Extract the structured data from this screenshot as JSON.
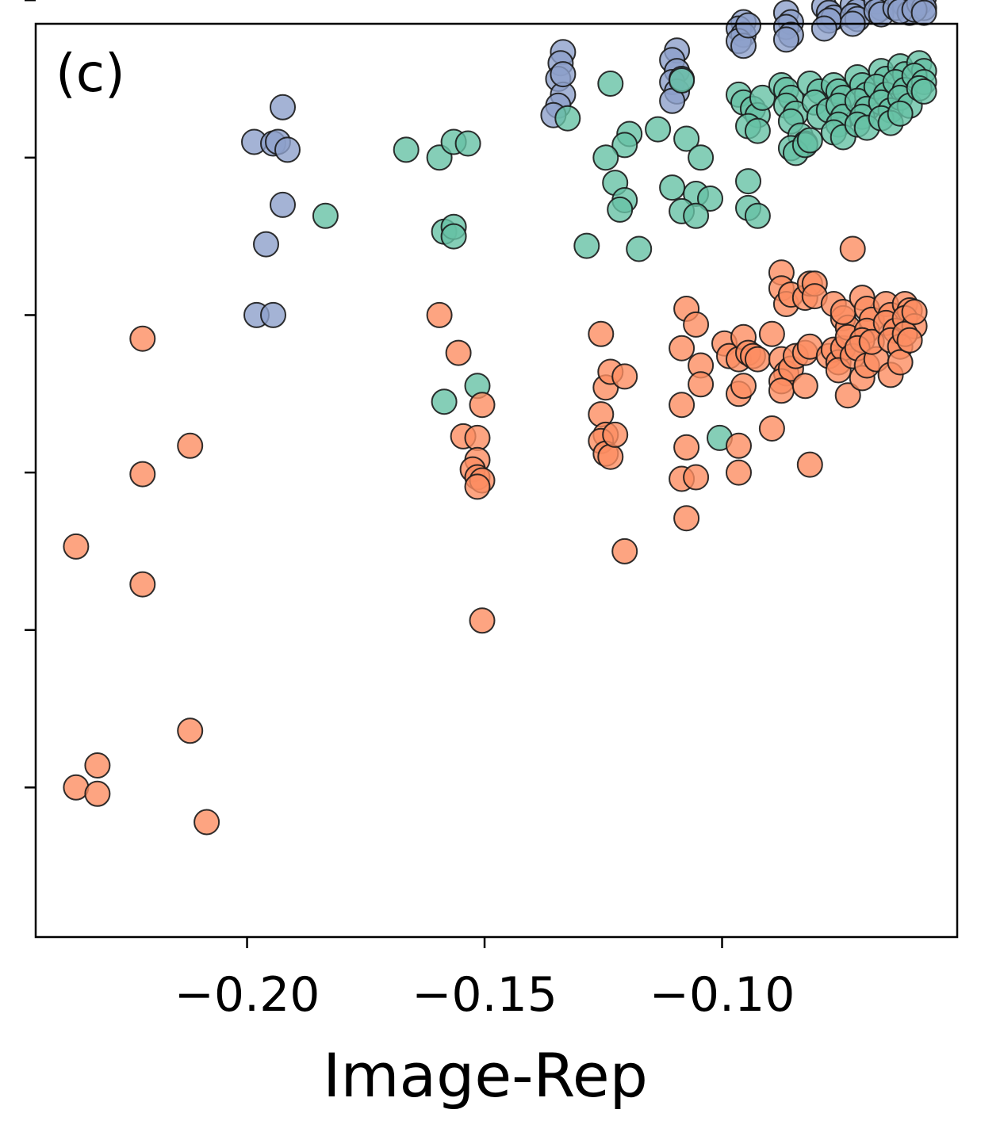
{
  "chart_data": {
    "type": "scatter",
    "panel_label": "(c)",
    "title": "",
    "xlabel": "Image-Rep",
    "ylabel": "",
    "xlim": [
      -0.2445,
      -0.0505
    ],
    "ylim": [
      -0.95,
      4.85
    ],
    "xticks": [
      -0.2,
      -0.15,
      -0.1
    ],
    "xtick_labels": [
      "−0.20",
      "−0.15",
      "−0.10"
    ],
    "yticks": [
      0,
      1,
      2,
      3,
      4,
      5
    ],
    "ytick_labels": [
      "",
      "",
      "",
      "",
      "",
      ""
    ],
    "grid": false,
    "colors": {
      "blue": "#8da0cb",
      "green": "#66c2a5",
      "orange": "#fc8d62",
      "edge": "#1a1a1a"
    },
    "series": [
      {
        "name": "blue",
        "color": "#8da0cb",
        "points": [
          [
            -0.1985,
            4.1
          ],
          [
            -0.1945,
            4.09
          ],
          [
            -0.1935,
            4.1
          ],
          [
            -0.1915,
            4.05
          ],
          [
            -0.1925,
            4.32
          ],
          [
            -0.1925,
            3.7
          ],
          [
            -0.196,
            3.45
          ],
          [
            -0.198,
            3.0
          ],
          [
            -0.1945,
            3.0
          ],
          [
            -0.1335,
            4.67
          ],
          [
            -0.134,
            4.6
          ],
          [
            -0.1345,
            4.5
          ],
          [
            -0.1335,
            4.4
          ],
          [
            -0.1345,
            4.33
          ],
          [
            -0.1355,
            4.27
          ],
          [
            -0.1335,
            4.53
          ],
          [
            -0.1095,
            4.68
          ],
          [
            -0.1105,
            4.62
          ],
          [
            -0.1095,
            4.55
          ],
          [
            -0.1105,
            4.48
          ],
          [
            -0.1095,
            4.42
          ],
          [
            -0.1105,
            4.36
          ],
          [
            -0.1085,
            4.5
          ],
          [
            -0.0955,
            4.86
          ],
          [
            -0.0965,
            4.82
          ],
          [
            -0.0955,
            4.78
          ],
          [
            -0.0965,
            4.74
          ],
          [
            -0.0955,
            4.71
          ],
          [
            -0.0945,
            4.84
          ],
          [
            -0.0865,
            4.92
          ],
          [
            -0.0855,
            4.86
          ],
          [
            -0.0865,
            4.83
          ],
          [
            -0.0855,
            4.78
          ],
          [
            -0.0865,
            4.75
          ],
          [
            -0.0785,
            4.96
          ],
          [
            -0.0775,
            4.92
          ],
          [
            -0.0765,
            4.89
          ],
          [
            -0.0775,
            4.87
          ],
          [
            -0.0785,
            4.82
          ],
          [
            -0.0725,
            4.97
          ],
          [
            -0.0715,
            4.93
          ],
          [
            -0.0725,
            4.9
          ],
          [
            -0.0715,
            4.88
          ],
          [
            -0.0725,
            4.85
          ],
          [
            -0.0675,
            4.99
          ],
          [
            -0.0665,
            4.95
          ],
          [
            -0.0675,
            4.93
          ],
          [
            -0.0665,
            4.91
          ],
          [
            -0.0625,
            5.0
          ],
          [
            -0.0615,
            4.97
          ],
          [
            -0.0635,
            4.95
          ],
          [
            -0.0605,
            4.92
          ],
          [
            -0.0625,
            4.93
          ],
          [
            -0.0575,
            5.02
          ],
          [
            -0.0585,
            4.98
          ],
          [
            -0.0575,
            4.95
          ],
          [
            -0.0595,
            4.94
          ],
          [
            -0.0575,
            4.92
          ]
        ]
      },
      {
        "name": "green",
        "color": "#66c2a5",
        "points": [
          [
            -0.1665,
            4.05
          ],
          [
            -0.1595,
            4.0
          ],
          [
            -0.1565,
            4.1
          ],
          [
            -0.1535,
            4.09
          ],
          [
            -0.1835,
            3.63
          ],
          [
            -0.1585,
            3.53
          ],
          [
            -0.1565,
            3.56
          ],
          [
            -0.1565,
            3.5
          ],
          [
            -0.1515,
            2.55
          ],
          [
            -0.1585,
            2.45
          ],
          [
            -0.1325,
            4.25
          ],
          [
            -0.1235,
            4.47
          ],
          [
            -0.1195,
            4.15
          ],
          [
            -0.1205,
            4.08
          ],
          [
            -0.1245,
            4.0
          ],
          [
            -0.1225,
            3.84
          ],
          [
            -0.1205,
            3.73
          ],
          [
            -0.1215,
            3.67
          ],
          [
            -0.1285,
            3.44
          ],
          [
            -0.1175,
            3.42
          ],
          [
            -0.1135,
            4.18
          ],
          [
            -0.1085,
            4.49
          ],
          [
            -0.1075,
            4.12
          ],
          [
            -0.1045,
            4.0
          ],
          [
            -0.1105,
            3.81
          ],
          [
            -0.1055,
            3.77
          ],
          [
            -0.1025,
            3.74
          ],
          [
            -0.1085,
            3.66
          ],
          [
            -0.1055,
            3.63
          ],
          [
            -0.1005,
            2.22
          ],
          [
            -0.0965,
            4.4
          ],
          [
            -0.0955,
            4.35
          ],
          [
            -0.0935,
            4.31
          ],
          [
            -0.0925,
            4.27
          ],
          [
            -0.0945,
            4.2
          ],
          [
            -0.0925,
            4.17
          ],
          [
            -0.0915,
            4.38
          ],
          [
            -0.0945,
            3.85
          ],
          [
            -0.0945,
            3.68
          ],
          [
            -0.0925,
            3.63
          ],
          [
            -0.0875,
            4.46
          ],
          [
            -0.0865,
            4.43
          ],
          [
            -0.0855,
            4.38
          ],
          [
            -0.0865,
            4.33
          ],
          [
            -0.0845,
            4.28
          ],
          [
            -0.0855,
            4.23
          ],
          [
            -0.0835,
            4.14
          ],
          [
            -0.0825,
            4.09
          ],
          [
            -0.0855,
            4.06
          ],
          [
            -0.0845,
            4.03
          ],
          [
            -0.0825,
            4.08
          ],
          [
            -0.0815,
            4.11
          ],
          [
            -0.0815,
            4.47
          ],
          [
            -0.0795,
            4.42
          ],
          [
            -0.0805,
            4.35
          ],
          [
            -0.0795,
            4.26
          ],
          [
            -0.0775,
            4.3
          ],
          [
            -0.0765,
            4.46
          ],
          [
            -0.0755,
            4.42
          ],
          [
            -0.0745,
            4.38
          ],
          [
            -0.0755,
            4.33
          ],
          [
            -0.0745,
            4.26
          ],
          [
            -0.0755,
            4.21
          ],
          [
            -0.0765,
            4.16
          ],
          [
            -0.0745,
            4.13
          ],
          [
            -0.0715,
            4.51
          ],
          [
            -0.0705,
            4.46
          ],
          [
            -0.0695,
            4.4
          ],
          [
            -0.0715,
            4.36
          ],
          [
            -0.0695,
            4.31
          ],
          [
            -0.0705,
            4.26
          ],
          [
            -0.0715,
            4.21
          ],
          [
            -0.0695,
            4.19
          ],
          [
            -0.0665,
            4.55
          ],
          [
            -0.0655,
            4.5
          ],
          [
            -0.0675,
            4.45
          ],
          [
            -0.0655,
            4.4
          ],
          [
            -0.0665,
            4.35
          ],
          [
            -0.0645,
            4.3
          ],
          [
            -0.0665,
            4.25
          ],
          [
            -0.0645,
            4.22
          ],
          [
            -0.0625,
            4.58
          ],
          [
            -0.0615,
            4.53
          ],
          [
            -0.0635,
            4.48
          ],
          [
            -0.0615,
            4.43
          ],
          [
            -0.0625,
            4.38
          ],
          [
            -0.0605,
            4.33
          ],
          [
            -0.0625,
            4.28
          ],
          [
            -0.0585,
            4.6
          ],
          [
            -0.0575,
            4.55
          ],
          [
            -0.0595,
            4.52
          ],
          [
            -0.0575,
            4.48
          ],
          [
            -0.0585,
            4.44
          ],
          [
            -0.0575,
            4.42
          ]
        ]
      },
      {
        "name": "orange",
        "color": "#fc8d62",
        "points": [
          [
            -0.236,
            1.53
          ],
          [
            -0.222,
            2.85
          ],
          [
            -0.222,
            1.99
          ],
          [
            -0.222,
            1.29
          ],
          [
            -0.212,
            2.17
          ],
          [
            -0.212,
            0.36
          ],
          [
            -0.236,
            0.0
          ],
          [
            -0.2315,
            0.14
          ],
          [
            -0.2315,
            -0.04
          ],
          [
            -0.2085,
            -0.22
          ],
          [
            -0.1595,
            3.0
          ],
          [
            -0.1555,
            2.76
          ],
          [
            -0.1505,
            2.43
          ],
          [
            -0.1545,
            2.23
          ],
          [
            -0.1515,
            2.22
          ],
          [
            -0.1515,
            2.08
          ],
          [
            -0.1525,
            2.02
          ],
          [
            -0.1515,
            1.97
          ],
          [
            -0.1505,
            1.95
          ],
          [
            -0.1515,
            1.91
          ],
          [
            -0.1505,
            1.06
          ],
          [
            -0.1255,
            2.88
          ],
          [
            -0.1245,
            2.54
          ],
          [
            -0.1255,
            2.37
          ],
          [
            -0.1245,
            2.24
          ],
          [
            -0.1255,
            2.2
          ],
          [
            -0.1245,
            2.12
          ],
          [
            -0.1235,
            2.1
          ],
          [
            -0.1225,
            2.24
          ],
          [
            -0.1235,
            2.64
          ],
          [
            -0.1205,
            2.61
          ],
          [
            -0.1205,
            1.5
          ],
          [
            -0.1075,
            3.04
          ],
          [
            -0.1055,
            2.94
          ],
          [
            -0.1085,
            2.79
          ],
          [
            -0.1045,
            2.68
          ],
          [
            -0.1045,
            2.56
          ],
          [
            -0.1085,
            2.43
          ],
          [
            -0.1075,
            2.16
          ],
          [
            -0.1085,
            1.96
          ],
          [
            -0.1055,
            1.97
          ],
          [
            -0.1075,
            1.71
          ],
          [
            -0.0995,
            2.82
          ],
          [
            -0.0985,
            2.74
          ],
          [
            -0.0965,
            2.72
          ],
          [
            -0.0955,
            2.86
          ],
          [
            -0.0945,
            2.76
          ],
          [
            -0.0935,
            2.74
          ],
          [
            -0.0925,
            2.72
          ],
          [
            -0.0965,
            2.5
          ],
          [
            -0.0955,
            2.55
          ],
          [
            -0.0965,
            2.17
          ],
          [
            -0.0965,
            2.0
          ],
          [
            -0.0895,
            2.88
          ],
          [
            -0.0875,
            2.72
          ],
          [
            -0.0865,
            2.63
          ],
          [
            -0.0875,
            2.58
          ],
          [
            -0.0855,
            2.66
          ],
          [
            -0.0845,
            2.74
          ],
          [
            -0.0825,
            2.76
          ],
          [
            -0.0815,
            2.8
          ],
          [
            -0.0875,
            2.52
          ],
          [
            -0.0895,
            2.28
          ],
          [
            -0.0815,
            2.05
          ],
          [
            -0.0875,
            3.27
          ],
          [
            -0.0875,
            3.17
          ],
          [
            -0.0865,
            3.07
          ],
          [
            -0.0855,
            3.13
          ],
          [
            -0.0825,
            3.11
          ],
          [
            -0.0815,
            3.2
          ],
          [
            -0.0805,
            3.2
          ],
          [
            -0.0805,
            3.12
          ],
          [
            -0.0825,
            2.55
          ],
          [
            -0.0775,
            2.74
          ],
          [
            -0.0765,
            2.78
          ],
          [
            -0.0755,
            2.7
          ],
          [
            -0.0745,
            2.79
          ],
          [
            -0.0755,
            2.65
          ],
          [
            -0.0735,
            2.49
          ],
          [
            -0.0765,
            3.07
          ],
          [
            -0.0745,
            2.98
          ],
          [
            -0.0735,
            2.92
          ],
          [
            -0.0745,
            3.02
          ],
          [
            -0.0735,
            2.86
          ],
          [
            -0.0725,
            2.74
          ],
          [
            -0.0725,
            3.42
          ],
          [
            -0.0705,
            3.11
          ],
          [
            -0.0695,
            3.04
          ],
          [
            -0.0685,
            2.97
          ],
          [
            -0.0695,
            2.9
          ],
          [
            -0.0705,
            2.84
          ],
          [
            -0.0715,
            2.79
          ],
          [
            -0.0705,
            2.6
          ],
          [
            -0.0695,
            2.68
          ],
          [
            -0.0675,
            2.72
          ],
          [
            -0.0685,
            2.83
          ],
          [
            -0.0655,
            3.07
          ],
          [
            -0.0645,
            3.0
          ],
          [
            -0.0655,
            2.95
          ],
          [
            -0.0635,
            2.9
          ],
          [
            -0.0645,
            2.84
          ],
          [
            -0.0625,
            2.8
          ],
          [
            -0.0645,
            2.62
          ],
          [
            -0.0625,
            2.7
          ],
          [
            -0.0615,
            3.07
          ],
          [
            -0.0605,
            3.03
          ],
          [
            -0.0615,
            2.98
          ],
          [
            -0.0595,
            2.93
          ],
          [
            -0.0615,
            2.88
          ],
          [
            -0.0605,
            2.84
          ],
          [
            -0.0595,
            3.02
          ]
        ]
      }
    ]
  }
}
